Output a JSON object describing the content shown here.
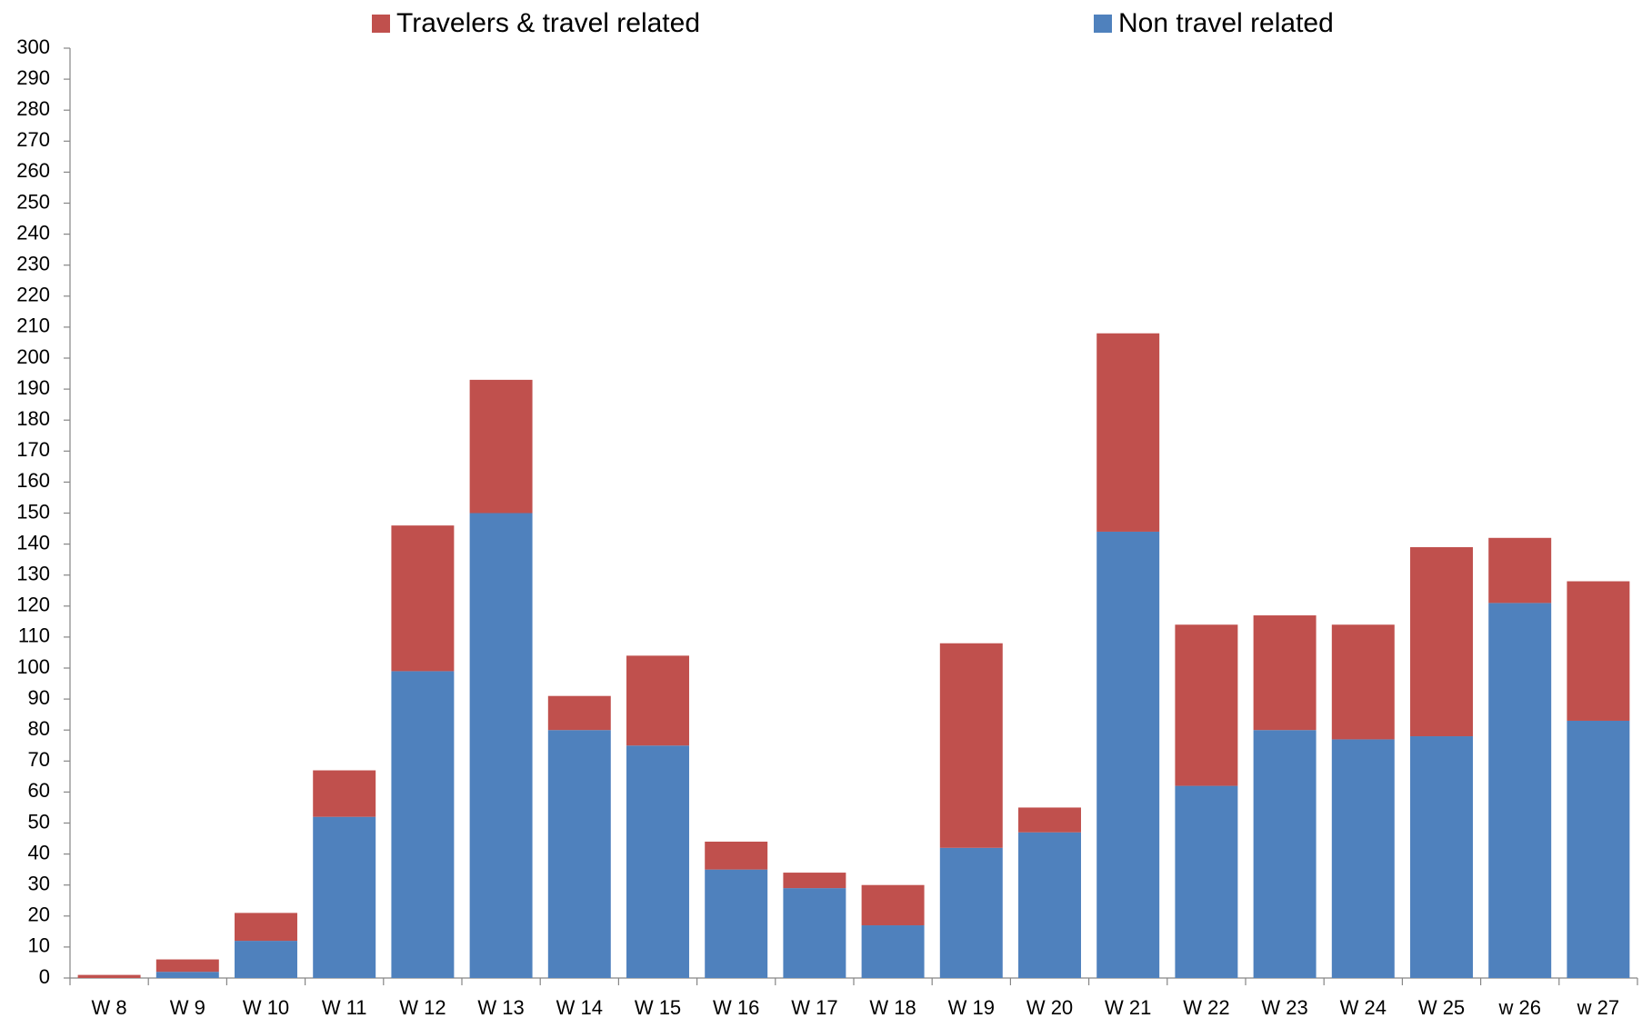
{
  "chart_data": {
    "type": "stacked-bar",
    "categories": [
      "W 8",
      "W 9",
      "W 10",
      "W 11",
      "W 12",
      "W 13",
      "W 14",
      "W 15",
      "W 16",
      "W 17",
      "W 18",
      "W 19",
      "W 20",
      "W 21",
      "W 22",
      "W 23",
      "W 24",
      "W 25",
      "w 26",
      "w 27"
    ],
    "series": [
      {
        "name": "Travelers & travel related",
        "color": "#c0504d",
        "values": [
          1,
          4,
          9,
          15,
          47,
          43,
          11,
          29,
          9,
          5,
          13,
          66,
          8,
          64,
          52,
          37,
          37,
          61,
          21,
          45
        ]
      },
      {
        "name": "Non travel related",
        "color": "#4f81bd",
        "values": [
          0,
          2,
          12,
          52,
          99,
          150,
          80,
          75,
          35,
          29,
          17,
          42,
          47,
          144,
          62,
          80,
          77,
          78,
          121,
          83
        ]
      }
    ],
    "ylim": [
      0,
      300
    ],
    "yticks": [
      0,
      10,
      20,
      30,
      40,
      50,
      60,
      70,
      80,
      90,
      100,
      110,
      120,
      130,
      140,
      150,
      160,
      170,
      180,
      190,
      200,
      210,
      220,
      230,
      240,
      250,
      260,
      270,
      280,
      290,
      300
    ],
    "grid": false,
    "legend": "top"
  }
}
